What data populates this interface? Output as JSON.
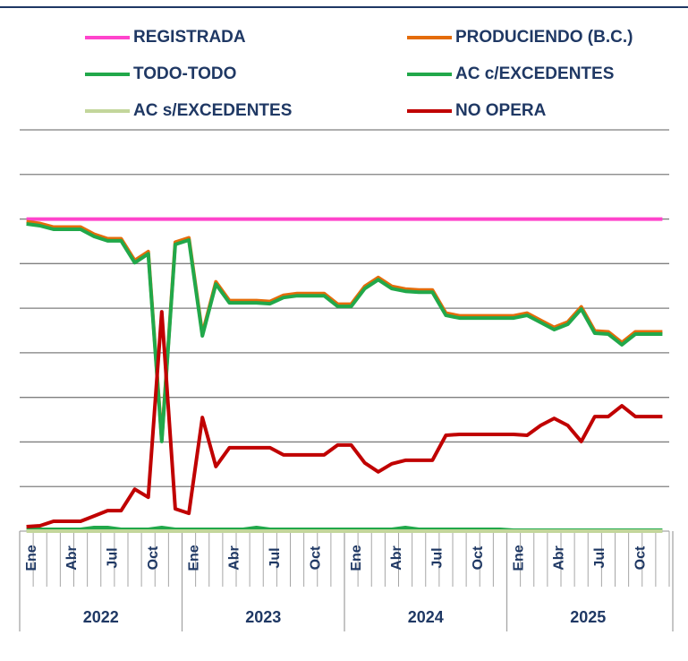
{
  "chart_data": {
    "type": "line",
    "categories": [
      "Ene",
      null,
      null,
      "Abr",
      null,
      null,
      "Jul",
      null,
      null,
      "Oct",
      null,
      null,
      "Ene",
      null,
      null,
      "Abr",
      null,
      null,
      "Jul",
      null,
      null,
      "Oct",
      null,
      null,
      "Ene",
      null,
      null,
      "Abr",
      null,
      null,
      "Jul",
      null,
      null,
      "Oct",
      null,
      null,
      "Ene",
      null,
      null,
      "Abr",
      null,
      null,
      "Jul",
      null,
      null,
      "Oct",
      null,
      null
    ],
    "year_groups": [
      "2022",
      "2023",
      "2024",
      "2025"
    ],
    "ylim": [
      0,
      9
    ],
    "yticks": [
      0,
      1,
      2,
      3,
      4,
      5,
      6,
      7,
      8,
      9
    ],
    "grid": true,
    "series": [
      {
        "name": "REGISTRADA",
        "color": "#ff44cc",
        "values": [
          7,
          7,
          7,
          7,
          7,
          7,
          7,
          7,
          7,
          7,
          7,
          7,
          7,
          7,
          7,
          7,
          7,
          7,
          7,
          7,
          7,
          7,
          7,
          7,
          7,
          7,
          7,
          7,
          7,
          7,
          7,
          7,
          7,
          7,
          7,
          7,
          7,
          7,
          7,
          7,
          7,
          7,
          7,
          7,
          7,
          7,
          7,
          7
        ]
      },
      {
        "name": "PRODUCIENDO (B.C.)",
        "color": "#e46c0a",
        "values": [
          6.94,
          6.9,
          6.82,
          6.82,
          6.82,
          6.66,
          6.56,
          6.56,
          6.07,
          6.27,
          2.06,
          6.48,
          6.58,
          4.43,
          5.59,
          5.17,
          5.17,
          5.17,
          5.15,
          5.29,
          5.33,
          5.33,
          5.33,
          5.09,
          5.09,
          5.49,
          5.69,
          5.49,
          5.43,
          5.41,
          5.41,
          4.89,
          4.83,
          4.83,
          4.83,
          4.83,
          4.83,
          4.89,
          4.73,
          4.57,
          4.69,
          5.03,
          4.49,
          4.47,
          4.23,
          4.47,
          4.47,
          4.47
        ]
      },
      {
        "name": "TODO-TODO",
        "color": "#21a84a",
        "values": [
          6.89,
          6.85,
          6.77,
          6.77,
          6.77,
          6.61,
          6.51,
          6.51,
          6.02,
          6.22,
          2.01,
          6.43,
          6.53,
          4.38,
          5.54,
          5.12,
          5.12,
          5.12,
          5.1,
          5.24,
          5.28,
          5.28,
          5.28,
          5.04,
          5.04,
          5.44,
          5.64,
          5.44,
          5.38,
          5.36,
          5.36,
          4.84,
          4.78,
          4.78,
          4.78,
          4.78,
          4.78,
          4.84,
          4.68,
          4.52,
          4.64,
          4.98,
          4.44,
          4.42,
          4.18,
          4.42,
          4.42,
          4.42
        ]
      },
      {
        "name": "AC c/EXCEDENTES",
        "color": "#21a84a",
        "values": [
          0.04,
          0.04,
          0.04,
          0.04,
          0.04,
          0.08,
          0.08,
          0.04,
          0.04,
          0.04,
          0.08,
          0.04,
          0.04,
          0.04,
          0.04,
          0.04,
          0.04,
          0.08,
          0.04,
          0.04,
          0.04,
          0.04,
          0.04,
          0.04,
          0.04,
          0.04,
          0.04,
          0.04,
          0.08,
          0.04,
          0.04,
          0.04,
          0.04,
          0.04,
          0.04,
          0.04,
          0.02,
          0.02,
          0.02,
          0.02,
          0.02,
          0.02,
          0.02,
          0.02,
          0.02,
          0.02,
          0.02,
          0.02
        ]
      },
      {
        "name": "AC s/EXCEDENTES",
        "color": "#c3d69b",
        "values": [
          0,
          0,
          0,
          0,
          0,
          0,
          0,
          0,
          0,
          0,
          0,
          0,
          0,
          0,
          0,
          0,
          0,
          0,
          0,
          0,
          0,
          0,
          0,
          0,
          0,
          0,
          0,
          0,
          0,
          0,
          0,
          0,
          0,
          0,
          0,
          0,
          0,
          0,
          0,
          0,
          0,
          0,
          0,
          0,
          0,
          0,
          0,
          0
        ]
      },
      {
        "name": "NO OPERA",
        "color": "#c00000",
        "values": [
          0.1,
          0.12,
          0.22,
          0.22,
          0.22,
          0.34,
          0.46,
          0.46,
          0.94,
          0.76,
          4.92,
          0.5,
          0.4,
          2.55,
          1.45,
          1.87,
          1.87,
          1.87,
          1.87,
          1.71,
          1.71,
          1.71,
          1.71,
          1.93,
          1.93,
          1.53,
          1.33,
          1.51,
          1.59,
          1.59,
          1.59,
          2.15,
          2.17,
          2.17,
          2.17,
          2.17,
          2.17,
          2.15,
          2.37,
          2.53,
          2.37,
          2.01,
          2.57,
          2.57,
          2.81,
          2.57,
          2.57,
          2.57
        ]
      }
    ]
  }
}
